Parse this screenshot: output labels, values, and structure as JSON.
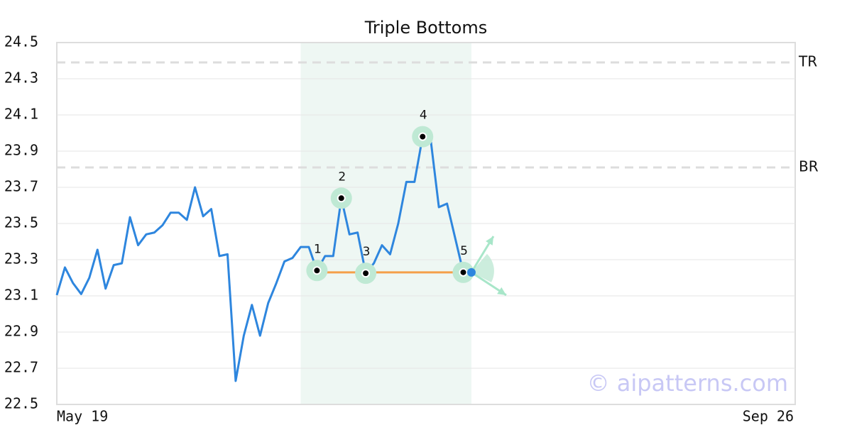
{
  "chart_data": {
    "type": "line",
    "title": "Triple Bottoms",
    "x_labels": [
      "May 19",
      "Sep 26"
    ],
    "values": [
      23.104,
      23.257,
      23.17,
      23.11,
      23.2,
      23.355,
      23.14,
      23.27,
      23.28,
      23.535,
      23.38,
      23.44,
      23.45,
      23.49,
      23.56,
      23.56,
      23.52,
      23.7,
      23.54,
      23.58,
      23.32,
      23.33,
      22.63,
      22.88,
      23.05,
      22.88,
      23.06,
      23.17,
      23.29,
      23.31,
      23.37,
      23.37,
      23.24,
      23.32,
      23.32,
      23.64,
      23.44,
      23.45,
      23.225,
      23.28,
      23.38,
      23.33,
      23.5,
      23.73,
      23.73,
      23.98,
      23.96,
      23.59,
      23.61,
      23.42,
      23.23
    ],
    "color": "#2e86de",
    "current": {
      "index": 51,
      "value": 23.23,
      "color": "#2e86de"
    },
    "pattern_points": [
      {
        "label": "1",
        "index": 32,
        "value": 23.24
      },
      {
        "label": "2",
        "index": 35,
        "value": 23.64
      },
      {
        "label": "3",
        "index": 38,
        "value": 23.225
      },
      {
        "label": "4",
        "index": 45,
        "value": 23.98
      },
      {
        "label": "5",
        "index": 50,
        "value": 23.23
      }
    ],
    "neckline": {
      "value": 23.23,
      "color": "#f5a04a"
    },
    "pattern_range": [
      30,
      51
    ],
    "levels": [
      {
        "label": "TR",
        "value": 24.39
      },
      {
        "label": "BR",
        "value": 23.81
      }
    ],
    "ylim": [
      22.5,
      24.5
    ],
    "yticks": [
      22.5,
      22.7,
      22.9,
      23.1,
      23.3,
      23.5,
      23.7,
      23.9,
      24.1,
      24.3,
      24.5
    ],
    "grid": true,
    "watermark": "© aipatterns.com"
  }
}
